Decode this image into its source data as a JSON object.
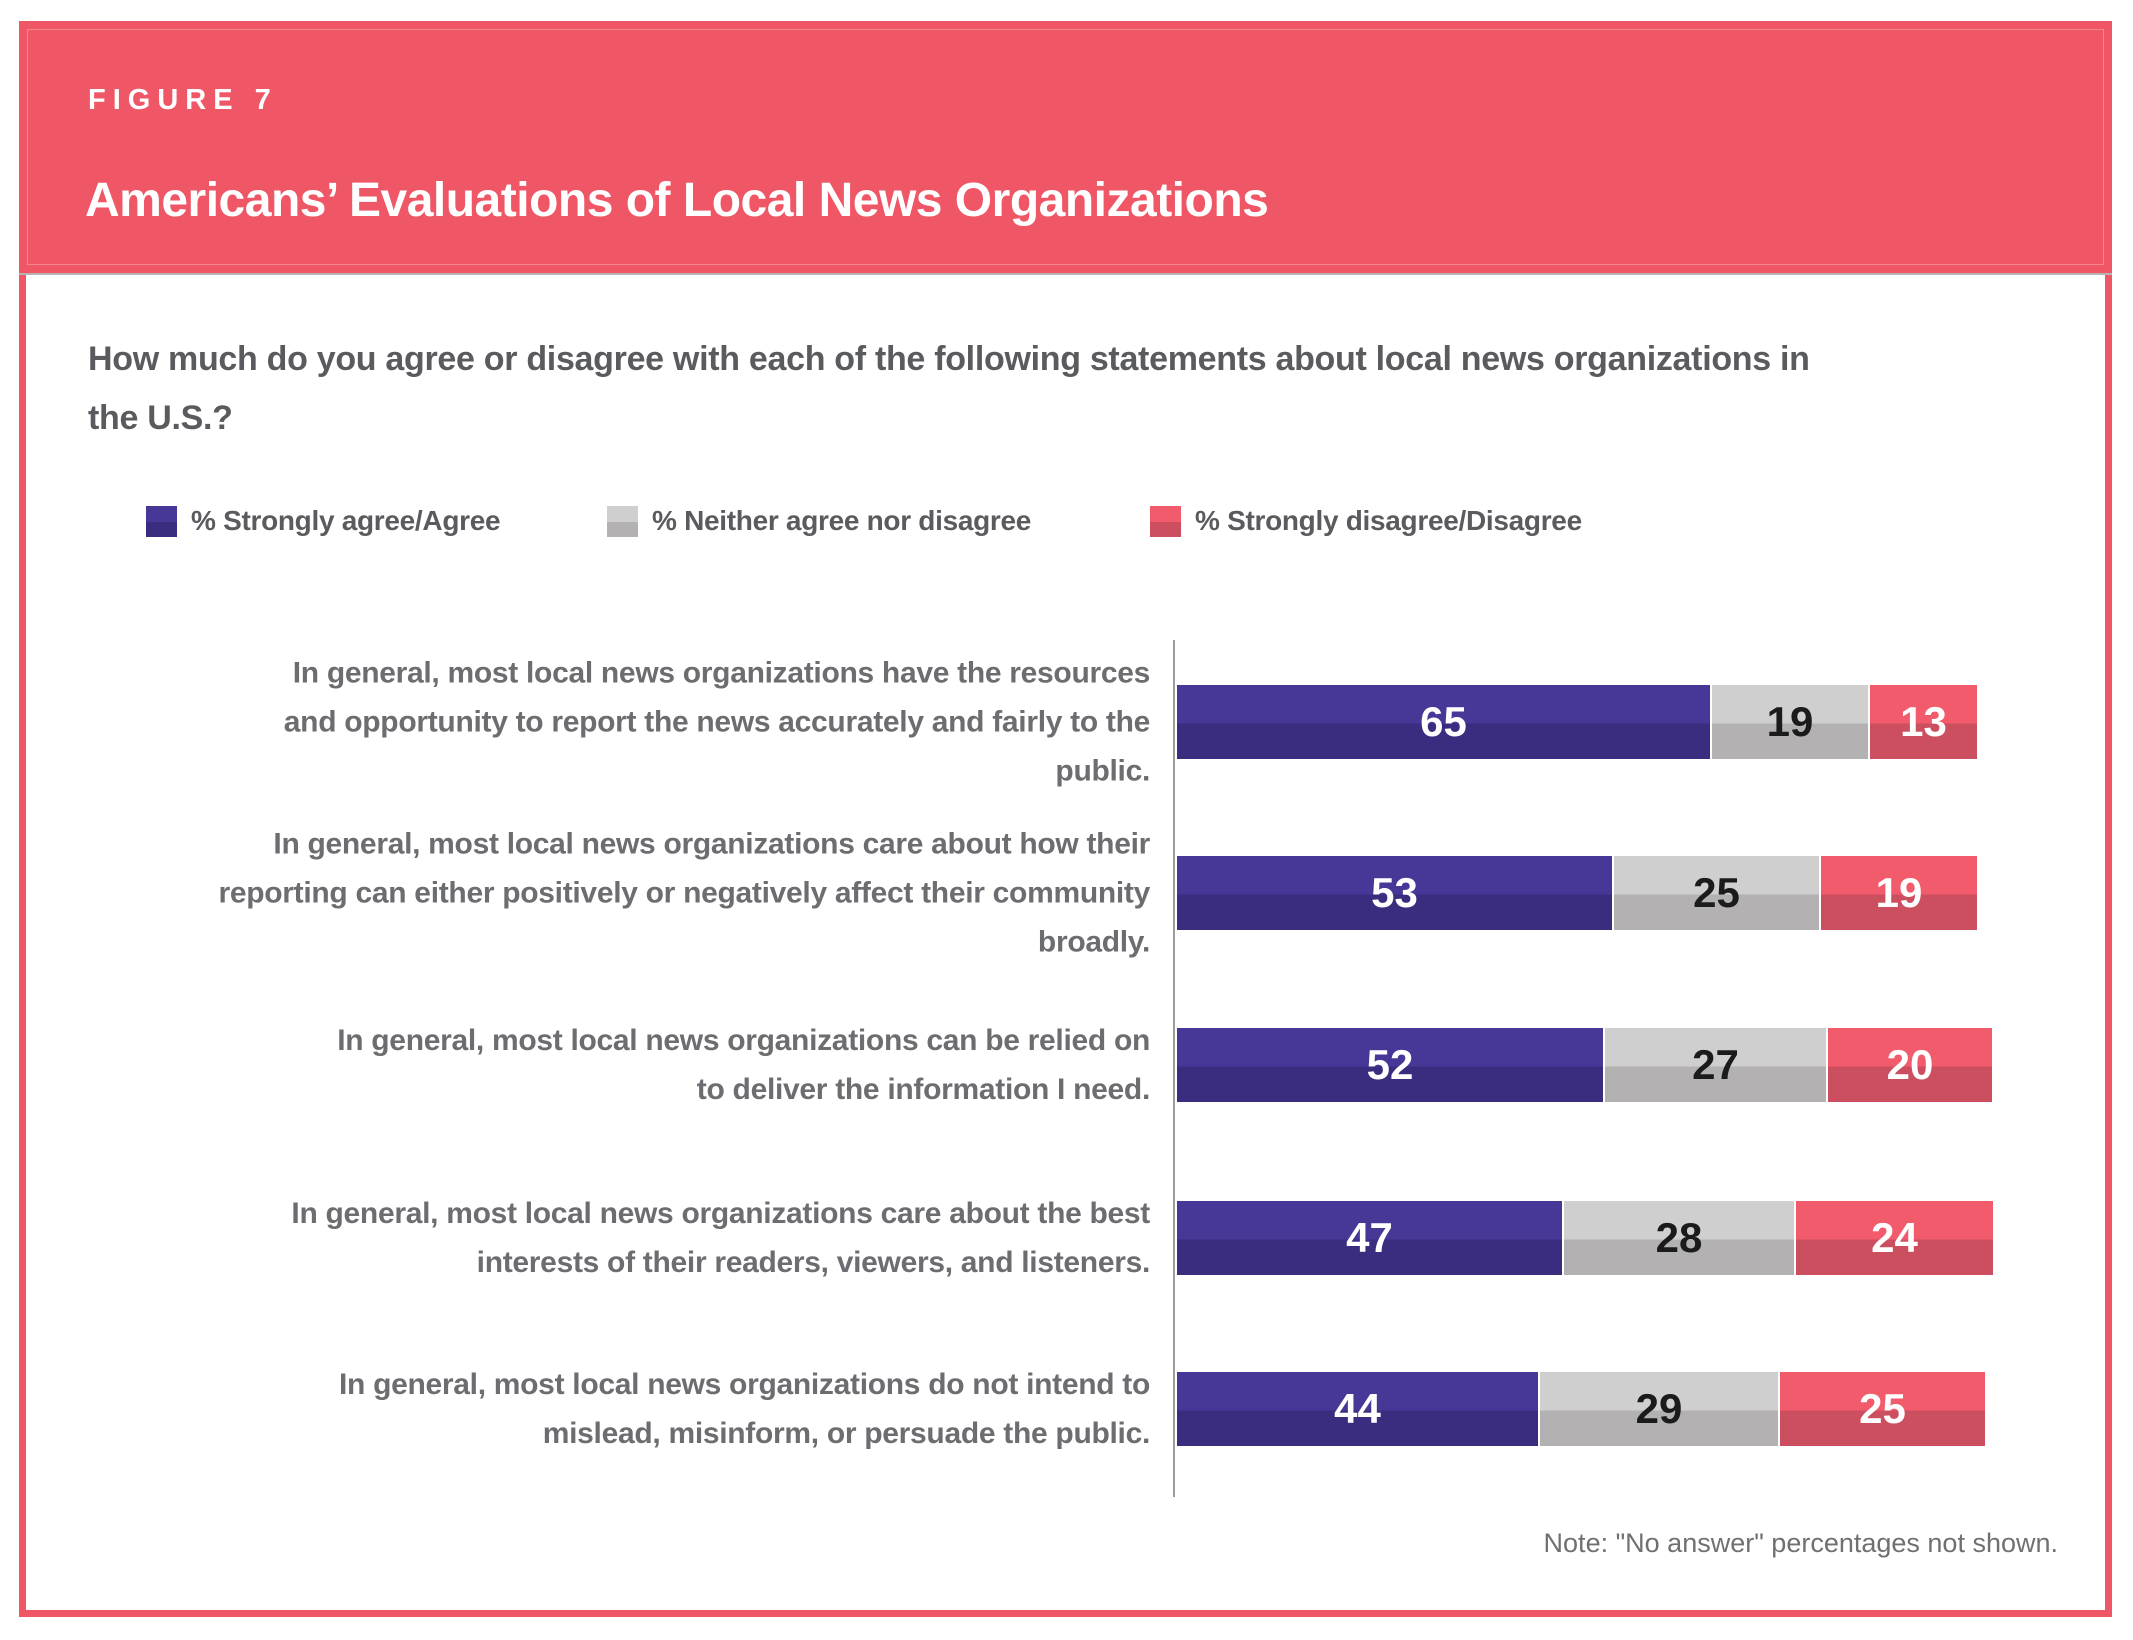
{
  "figure": {
    "label": "FIGURE 7",
    "title": "Americans’ Evaluations of Local News Organizations"
  },
  "question": "How much do you agree or disagree with each of the following statements about local news organizations in the U.S.?",
  "legend": [
    {
      "label": "% Strongly agree/Agree",
      "color_top": "#473897",
      "color_bottom": "#3A2C7E"
    },
    {
      "label": "% Neither agree nor disagree",
      "color_top": "#D0CFCF",
      "color_bottom": "#B3B1B1"
    },
    {
      "label": "% Strongly disagree/Disagree",
      "color_top": "#F25B6B",
      "color_bottom": "#CC4F5F"
    }
  ],
  "note": "Note: \"No answer\" percentages not shown.",
  "colors": {
    "header_background": "#EF5666",
    "frame_border": "#EF5666",
    "question_text": "#5A5B5E",
    "category_label_text": "#6C6D70",
    "axis_line": "#9B9B9B"
  },
  "chart_data": {
    "type": "bar",
    "orientation": "horizontal",
    "stacked": true,
    "xlim": [
      0,
      100
    ],
    "grid": false,
    "legend_position": "top",
    "value_labels_shown": true,
    "note": "Note: \"No answer\" percentages not shown.",
    "categories": [
      "In general, most local news organizations have the resources and opportunity to report the news accurately and fairly to the public.",
      "In general, most local news organizations care about how their reporting can either positively or negatively affect their community broadly.",
      "In general, most local news organizations can be relied on to deliver the information I need.",
      "In general, most local news organizations care about the best interests of their readers, viewers, and listeners.",
      "In general, most local news organizations do not intend to mislead, misinform, or persuade the public."
    ],
    "series": [
      {
        "name": "% Strongly agree/Agree",
        "values": [
          65,
          53,
          52,
          47,
          44
        ],
        "color": "#473897"
      },
      {
        "name": "% Neither agree nor disagree",
        "values": [
          19,
          25,
          27,
          28,
          29
        ],
        "color": "#C1C0C0"
      },
      {
        "name": "% Strongly disagree/Disagree",
        "values": [
          13,
          19,
          20,
          24,
          25
        ],
        "color": "#E5556A"
      }
    ],
    "rows": [
      {
        "values": [
          65,
          19,
          13
        ]
      },
      {
        "values": [
          53,
          25,
          19
        ]
      },
      {
        "values": [
          52,
          27,
          20
        ]
      },
      {
        "values": [
          47,
          28,
          24
        ]
      },
      {
        "values": [
          44,
          29,
          25
        ]
      }
    ]
  }
}
